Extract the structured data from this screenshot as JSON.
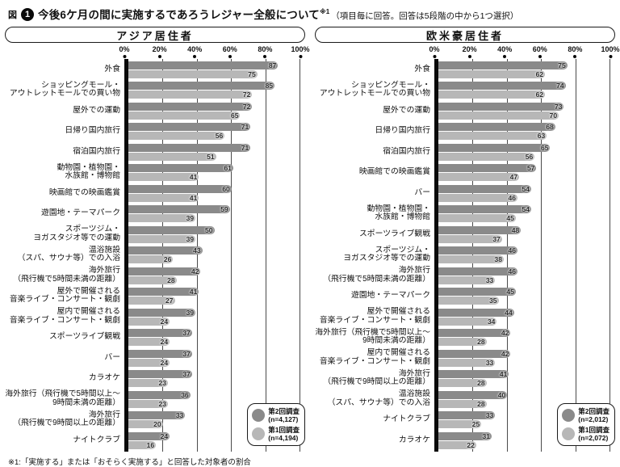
{
  "title": {
    "fig_label": "図",
    "fig_number": "1",
    "main": "今後6ケ月の間に実施するであろうレジャー全般について",
    "sup": "※1",
    "note": "（項目毎に回答。回答は5段階の中から1つ選択）"
  },
  "footnote": "※1:「実施する」または「おそらく実施する」と回答した対象者の割合",
  "axis_ticks": [
    "0%",
    "20%",
    "40%",
    "60%",
    "80%",
    "100%"
  ],
  "colors": {
    "survey2": "#8a8a8a",
    "survey1": "#b7b7b7",
    "grid": "#4a4a4a",
    "axis": "#0a0a0a"
  },
  "chart_data": [
    {
      "type": "bar",
      "orientation": "horizontal",
      "title": "アジア居住者",
      "xlim": [
        0,
        100
      ],
      "ticks": [
        0,
        20,
        40,
        60,
        80,
        100
      ],
      "grid": true,
      "legend_position": "bottom-right",
      "legend": [
        {
          "label": "第2回調査",
          "n": "(n=4,127)"
        },
        {
          "label": "第1回調査",
          "n": "(n=4,194)"
        }
      ],
      "categories": [
        "外食",
        "ショッピングモール・\nアウトレットモールでの買い物",
        "屋外での運動",
        "日帰り国内旅行",
        "宿泊国内旅行",
        "動物園・植物園・\n水族館・博物館",
        "映画館での映画鑑賞",
        "遊園地・テーマパーク",
        "スポーツジム・\nヨガスタジオ等での運動",
        "温浴施設\n（スパ、サウナ等）での入浴",
        "海外旅行\n（飛行機で5時間未満の距離）",
        "屋外で開催される\n音楽ライブ・コンサート・観劇",
        "屋内で開催される\n音楽ライブ・コンサート・観劇",
        "スポーツライブ観戦",
        "バー",
        "カラオケ",
        "海外旅行（飛行機で5時間以上～\n9時間未満の距離）",
        "海外旅行\n（飛行機で9時間以上の距離）",
        "ナイトクラブ"
      ],
      "series": [
        {
          "name": "第2回調査",
          "values": [
            87,
            85,
            72,
            71,
            71,
            61,
            60,
            59,
            50,
            43,
            42,
            41,
            39,
            37,
            37,
            37,
            36,
            33,
            24
          ]
        },
        {
          "name": "第1回調査",
          "values": [
            75,
            72,
            65,
            56,
            51,
            41,
            41,
            39,
            39,
            26,
            28,
            27,
            24,
            24,
            24,
            23,
            23,
            20,
            16
          ]
        }
      ]
    },
    {
      "type": "bar",
      "orientation": "horizontal",
      "title": "欧米豪居住者",
      "xlim": [
        0,
        100
      ],
      "ticks": [
        0,
        20,
        40,
        60,
        80,
        100
      ],
      "grid": true,
      "legend_position": "bottom-right",
      "legend": [
        {
          "label": "第2回調査",
          "n": "(n=2,012)"
        },
        {
          "label": "第1回調査",
          "n": "(n=2,072)"
        }
      ],
      "categories": [
        "外食",
        "ショッピングモール・\nアウトレットモールでの買い物",
        "屋外での運動",
        "日帰り国内旅行",
        "宿泊国内旅行",
        "映画館での映画鑑賞",
        "バー",
        "動物園・植物園・\n水族館・博物館",
        "スポーツライブ観戦",
        "スポーツジム・\nヨガスタジオ等での運動",
        "海外旅行\n（飛行機で5時間未満の距離）",
        "遊園地・テーマパーク",
        "屋外で開催される\n音楽ライブ・コンサート・観劇",
        "海外旅行（飛行機で5時間以上～\n9時間未満の距離）",
        "屋内で開催される\n音楽ライブ・コンサート・観劇",
        "海外旅行\n（飛行機で9時間以上の距離）",
        "温浴施設\n（スパ、サウナ等）での入浴",
        "ナイトクラブ",
        "カラオケ"
      ],
      "series": [
        {
          "name": "第2回調査",
          "values": [
            75,
            74,
            73,
            68,
            65,
            57,
            54,
            54,
            48,
            46,
            46,
            45,
            44,
            42,
            42,
            41,
            40,
            33,
            31
          ]
        },
        {
          "name": "第1回調査",
          "values": [
            62,
            62,
            70,
            63,
            56,
            47,
            46,
            45,
            37,
            38,
            33,
            35,
            34,
            28,
            33,
            28,
            28,
            25,
            22
          ]
        }
      ]
    }
  ]
}
